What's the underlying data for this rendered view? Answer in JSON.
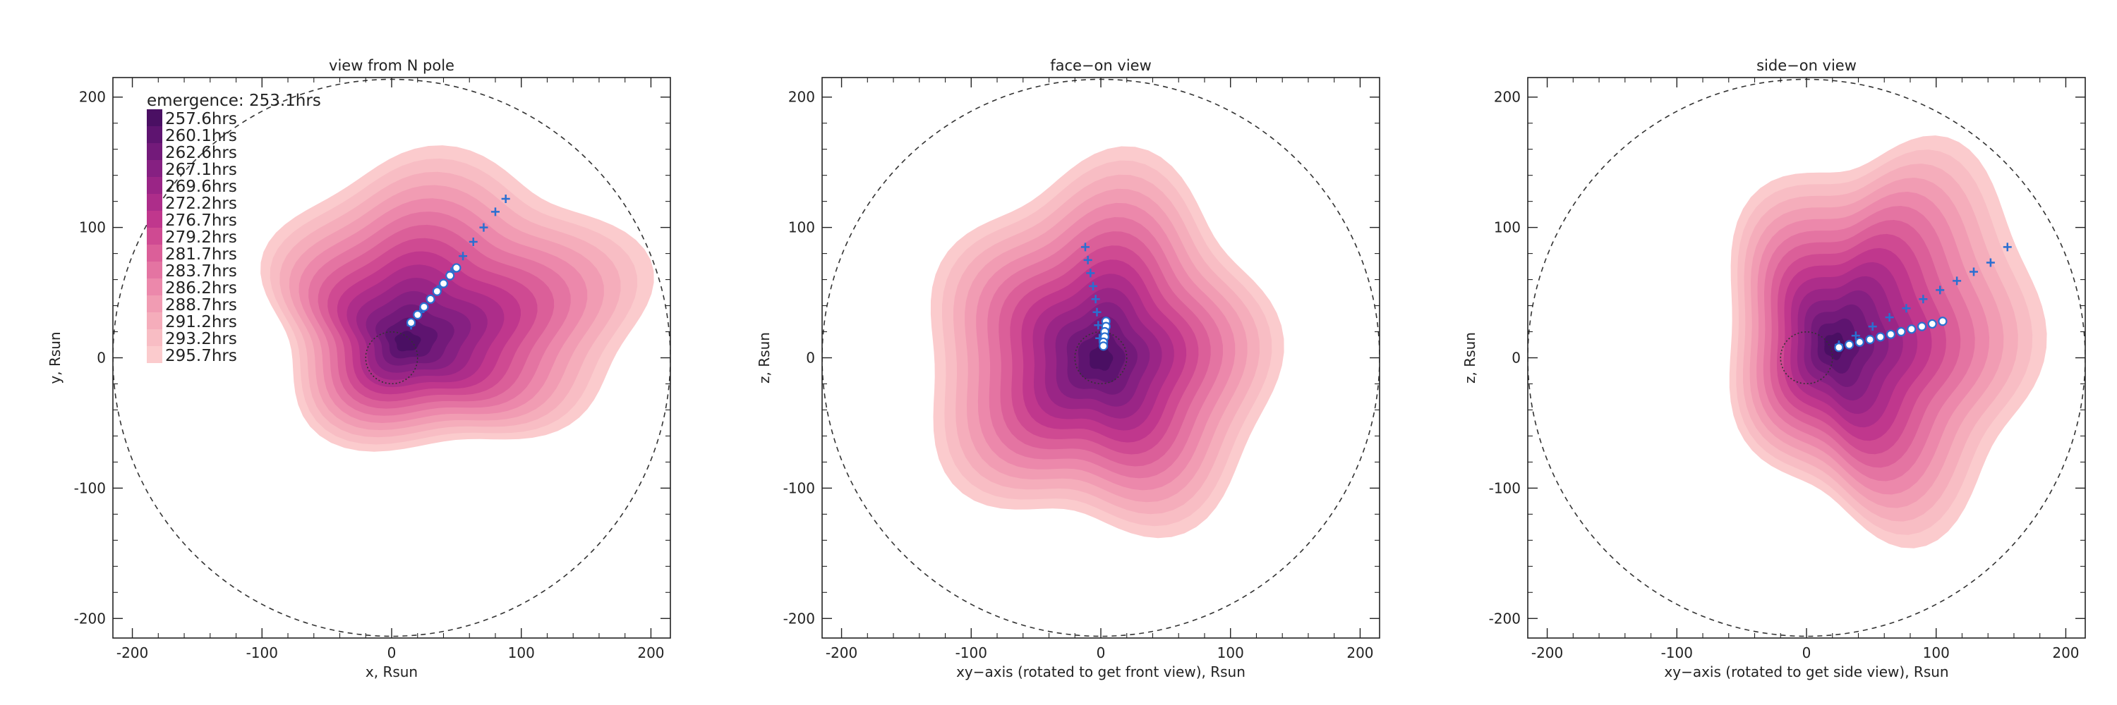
{
  "chart_data": [
    {
      "type": "heatmap",
      "panel": "north",
      "title": "view from N pole",
      "xlabel": "x, Rsun",
      "ylabel": "y, Rsun",
      "xlim": [
        -215,
        215
      ],
      "ylim": [
        -215,
        215
      ],
      "xticks": [
        "-200",
        "-100",
        "0",
        "100",
        "200"
      ],
      "yticks": [
        "-200",
        "-100",
        "0",
        "100",
        "200"
      ],
      "outer_circle_radius": 215,
      "inner_circle_radius": 20,
      "legend_header": "emergence: 253.1hrs",
      "contour_shape": {
        "center": [
          15,
          15
        ],
        "radius": 145,
        "scale": [
          1.0,
          0.78
        ],
        "offset": [
          35,
          30
        ]
      },
      "track_crosses": [
        [
          15,
          25
        ],
        [
          22,
          35
        ],
        [
          30,
          45
        ],
        [
          38,
          55
        ],
        [
          46,
          66
        ],
        [
          55,
          78
        ],
        [
          63,
          89
        ],
        [
          71,
          100
        ],
        [
          80,
          112
        ],
        [
          88,
          122
        ]
      ],
      "track_circles": [
        [
          15,
          27
        ],
        [
          20,
          33
        ],
        [
          25,
          39
        ],
        [
          30,
          45
        ],
        [
          35,
          51
        ],
        [
          40,
          57
        ],
        [
          45,
          63
        ],
        [
          50,
          69
        ]
      ]
    },
    {
      "type": "heatmap",
      "panel": "face",
      "title": "face−on view",
      "xlabel": "xy−axis (rotated to get front view), Rsun",
      "ylabel": "z, Rsun",
      "xlim": [
        -215,
        215
      ],
      "ylim": [
        -215,
        215
      ],
      "xticks": [
        "-200",
        "-100",
        "0",
        "100",
        "200"
      ],
      "yticks": [
        "-200",
        "-100",
        "0",
        "100",
        "200"
      ],
      "outer_circle_radius": 215,
      "inner_circle_radius": 20,
      "contour_shape": {
        "center": [
          0,
          0
        ],
        "radius": 135,
        "scale": [
          1.0,
          1.05
        ],
        "offset": [
          0,
          5
        ]
      },
      "track_crosses": [
        [
          -12,
          85
        ],
        [
          -10,
          75
        ],
        [
          -8,
          65
        ],
        [
          -6,
          55
        ],
        [
          -4,
          45
        ],
        [
          -3,
          35
        ],
        [
          -2,
          25
        ],
        [
          -1,
          15
        ]
      ],
      "track_circles": [
        [
          4,
          28
        ],
        [
          4,
          24
        ],
        [
          3,
          20
        ],
        [
          3,
          16
        ],
        [
          2,
          12
        ],
        [
          2,
          9
        ]
      ]
    },
    {
      "type": "heatmap",
      "panel": "side",
      "title": "side−on view",
      "xlabel": "xy−axis (rotated to get side view), Rsun",
      "ylabel": "z, Rsun",
      "xlim": [
        -215,
        215
      ],
      "ylim": [
        -215,
        215
      ],
      "xticks": [
        "-200",
        "-100",
        "0",
        "100",
        "200"
      ],
      "yticks": [
        "-200",
        "-100",
        "0",
        "100",
        "200"
      ],
      "outer_circle_radius": 215,
      "inner_circle_radius": 20,
      "contour_shape": {
        "center": [
          25,
          10
        ],
        "radius": 135,
        "scale": [
          0.9,
          1.1
        ],
        "offset": [
          40,
          10
        ]
      },
      "track_crosses": [
        [
          25,
          10
        ],
        [
          38,
          17
        ],
        [
          51,
          24
        ],
        [
          64,
          31
        ],
        [
          77,
          38
        ],
        [
          90,
          45
        ],
        [
          103,
          52
        ],
        [
          116,
          59
        ],
        [
          129,
          66
        ],
        [
          142,
          73
        ],
        [
          155,
          85
        ]
      ],
      "track_circles": [
        [
          25,
          8
        ],
        [
          33,
          10
        ],
        [
          41,
          12
        ],
        [
          49,
          14
        ],
        [
          57,
          16
        ],
        [
          65,
          18
        ],
        [
          73,
          20
        ],
        [
          81,
          22
        ],
        [
          89,
          24
        ],
        [
          97,
          26
        ],
        [
          105,
          28
        ]
      ]
    }
  ],
  "legend": {
    "levels": [
      {
        "label": "257.6hrs",
        "color": "#4a0f63"
      },
      {
        "label": "260.1hrs",
        "color": "#5e1470"
      },
      {
        "label": "262.6hrs",
        "color": "#731a7a"
      },
      {
        "label": "267.1hrs",
        "color": "#862082"
      },
      {
        "label": "269.6hrs",
        "color": "#9a2586"
      },
      {
        "label": "272.2hrs",
        "color": "#ad2d8a"
      },
      {
        "label": "276.7hrs",
        "color": "#c0378d"
      },
      {
        "label": "279.2hrs",
        "color": "#cf4a92"
      },
      {
        "label": "281.7hrs",
        "color": "#db5f99"
      },
      {
        "label": "283.7hrs",
        "color": "#e474a2"
      },
      {
        "label": "286.2hrs",
        "color": "#ec88ab"
      },
      {
        "label": "288.7hrs",
        "color": "#f19cb3"
      },
      {
        "label": "291.2hrs",
        "color": "#f5adbb"
      },
      {
        "label": "293.2hrs",
        "color": "#f8bdc4"
      },
      {
        "label": "295.7hrs",
        "color": "#fbcbcd"
      }
    ]
  },
  "colors": {
    "track": "#2a6fd1",
    "track_fill": "#ffffff",
    "axes": "#222222",
    "circle": "#333333"
  }
}
